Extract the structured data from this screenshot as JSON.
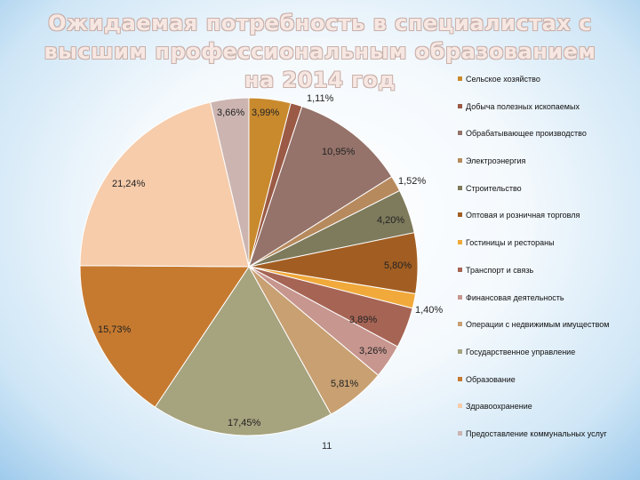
{
  "title_lines": [
    "Ожидаемая потребность в специалистах с",
    "высшим профессиональным образованием",
    "на 2014 год"
  ],
  "page_number": "11",
  "chart_data": {
    "type": "pie",
    "title": "Ожидаемая потребность в специалистах с высшим профессиональным образованием на 2014 год",
    "legend_position": "right",
    "series": [
      {
        "name": "Сельское хозяйство",
        "value": 3.99,
        "label": "3,99%",
        "color": "#c98a2e"
      },
      {
        "name": "Добыча полезных ископаемых",
        "value": 1.11,
        "label": "1,11%",
        "color": "#9b5a45"
      },
      {
        "name": "Обрабатывающее производство",
        "value": 10.95,
        "label": "10,95%",
        "color": "#95736a"
      },
      {
        "name": "Электроэнергия",
        "value": 1.52,
        "label": "1,52%",
        "color": "#b78a5e"
      },
      {
        "name": "Строительство",
        "value": 4.2,
        "label": "4,20%",
        "color": "#7e7a5c"
      },
      {
        "name": "Оптовая и розничная торговля",
        "value": 5.8,
        "label": "5,80%",
        "color": "#a25e22"
      },
      {
        "name": "Гостиницы и рестораны",
        "value": 1.4,
        "label": "1,40%",
        "color": "#f0a93a"
      },
      {
        "name": "Транспорт и связь",
        "value": 3.89,
        "label": "3,89%",
        "color": "#a66454"
      },
      {
        "name": "Финансовая деятельность",
        "value": 3.26,
        "label": "3,26%",
        "color": "#c7968f"
      },
      {
        "name": "Операции с недвижимым имуществом",
        "value": 5.81,
        "label": "5,81%",
        "color": "#c8a072"
      },
      {
        "name": "Государственное управление",
        "value": 17.45,
        "label": "17,45%",
        "color": "#a6a37f"
      },
      {
        "name": "Образование",
        "value": 15.73,
        "label": "15,73%",
        "color": "#c67a30"
      },
      {
        "name": "Здравоохранение",
        "value": 21.24,
        "label": "21,24%",
        "color": "#f6ccab"
      },
      {
        "name": "Предоставление коммунальных услуг",
        "value": 3.66,
        "label": "3,66%",
        "color": "#ccb5b1"
      }
    ]
  }
}
